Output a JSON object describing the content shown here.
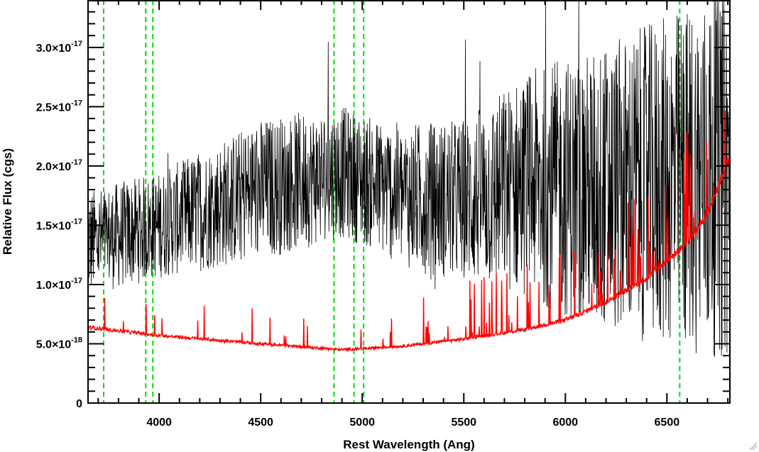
{
  "chart_data": {
    "type": "line",
    "xlabel": "Rest Wavelength (Ang)",
    "ylabel": "Relative Flux (cgs)",
    "xlim": [
      3650,
      6810
    ],
    "ylim": [
      0,
      3.4e-17
    ],
    "x_ticks": [
      4000,
      4500,
      5000,
      5500,
      6000,
      6500
    ],
    "x_tick_labels": [
      "4000",
      "4500",
      "5000",
      "5500",
      "6000",
      "6500"
    ],
    "y_ticks": [
      0,
      5e-18,
      1e-17,
      1.5e-17,
      2e-17,
      2.5e-17,
      3e-17
    ],
    "y_tick_mantissas": [
      "0",
      "5.0×10",
      "1.0×10",
      "1.5×10",
      "2.0×10",
      "2.5×10",
      "3.0×10"
    ],
    "y_tick_exponents": [
      "",
      "-18",
      "-17",
      "-17",
      "-17",
      "-17",
      "-17"
    ],
    "vertical_lines": {
      "color": "#00dd00",
      "style": "dashed",
      "x": [
        3727,
        3934,
        3969,
        4861,
        4959,
        5007,
        6563
      ]
    },
    "series": [
      {
        "color": "#000000",
        "style": "noisy-spectrum",
        "continuum": [
          [
            3650,
            1.35e-17
          ],
          [
            4000,
            1.5e-17
          ],
          [
            4500,
            1.8e-17
          ],
          [
            4900,
            1.95e-17
          ],
          [
            5200,
            1.75e-17
          ],
          [
            5500,
            1.7e-17
          ],
          [
            5800,
            1.85e-17
          ],
          [
            6100,
            1.8e-17
          ],
          [
            6400,
            1.85e-17
          ],
          [
            6810,
            1.95e-17
          ]
        ],
        "noise_amplitude": [
          [
            3650,
            4.5e-18
          ],
          [
            4000,
            4.5e-18
          ],
          [
            4500,
            6e-18
          ],
          [
            5000,
            5.5e-18
          ],
          [
            5500,
            7e-18
          ],
          [
            6000,
            1.1e-17
          ],
          [
            6500,
            1.4e-17
          ],
          [
            6810,
            1.6e-17
          ]
        ]
      },
      {
        "color": "#ff0000",
        "style": "error-spectrum",
        "continuum": [
          [
            3650,
            6.4e-18
          ],
          [
            4000,
            5.7e-18
          ],
          [
            4500,
            5e-18
          ],
          [
            4900,
            4.5e-18
          ],
          [
            5200,
            4.8e-18
          ],
          [
            5500,
            5.4e-18
          ],
          [
            5800,
            6.2e-18
          ],
          [
            6000,
            7e-18
          ],
          [
            6200,
            8.5e-18
          ],
          [
            6400,
            1.05e-17
          ],
          [
            6600,
            1.35e-17
          ],
          [
            6700,
            1.6e-17
          ],
          [
            6780,
            1.95e-17
          ],
          [
            6810,
            2.1e-17
          ]
        ]
      }
    ]
  }
}
